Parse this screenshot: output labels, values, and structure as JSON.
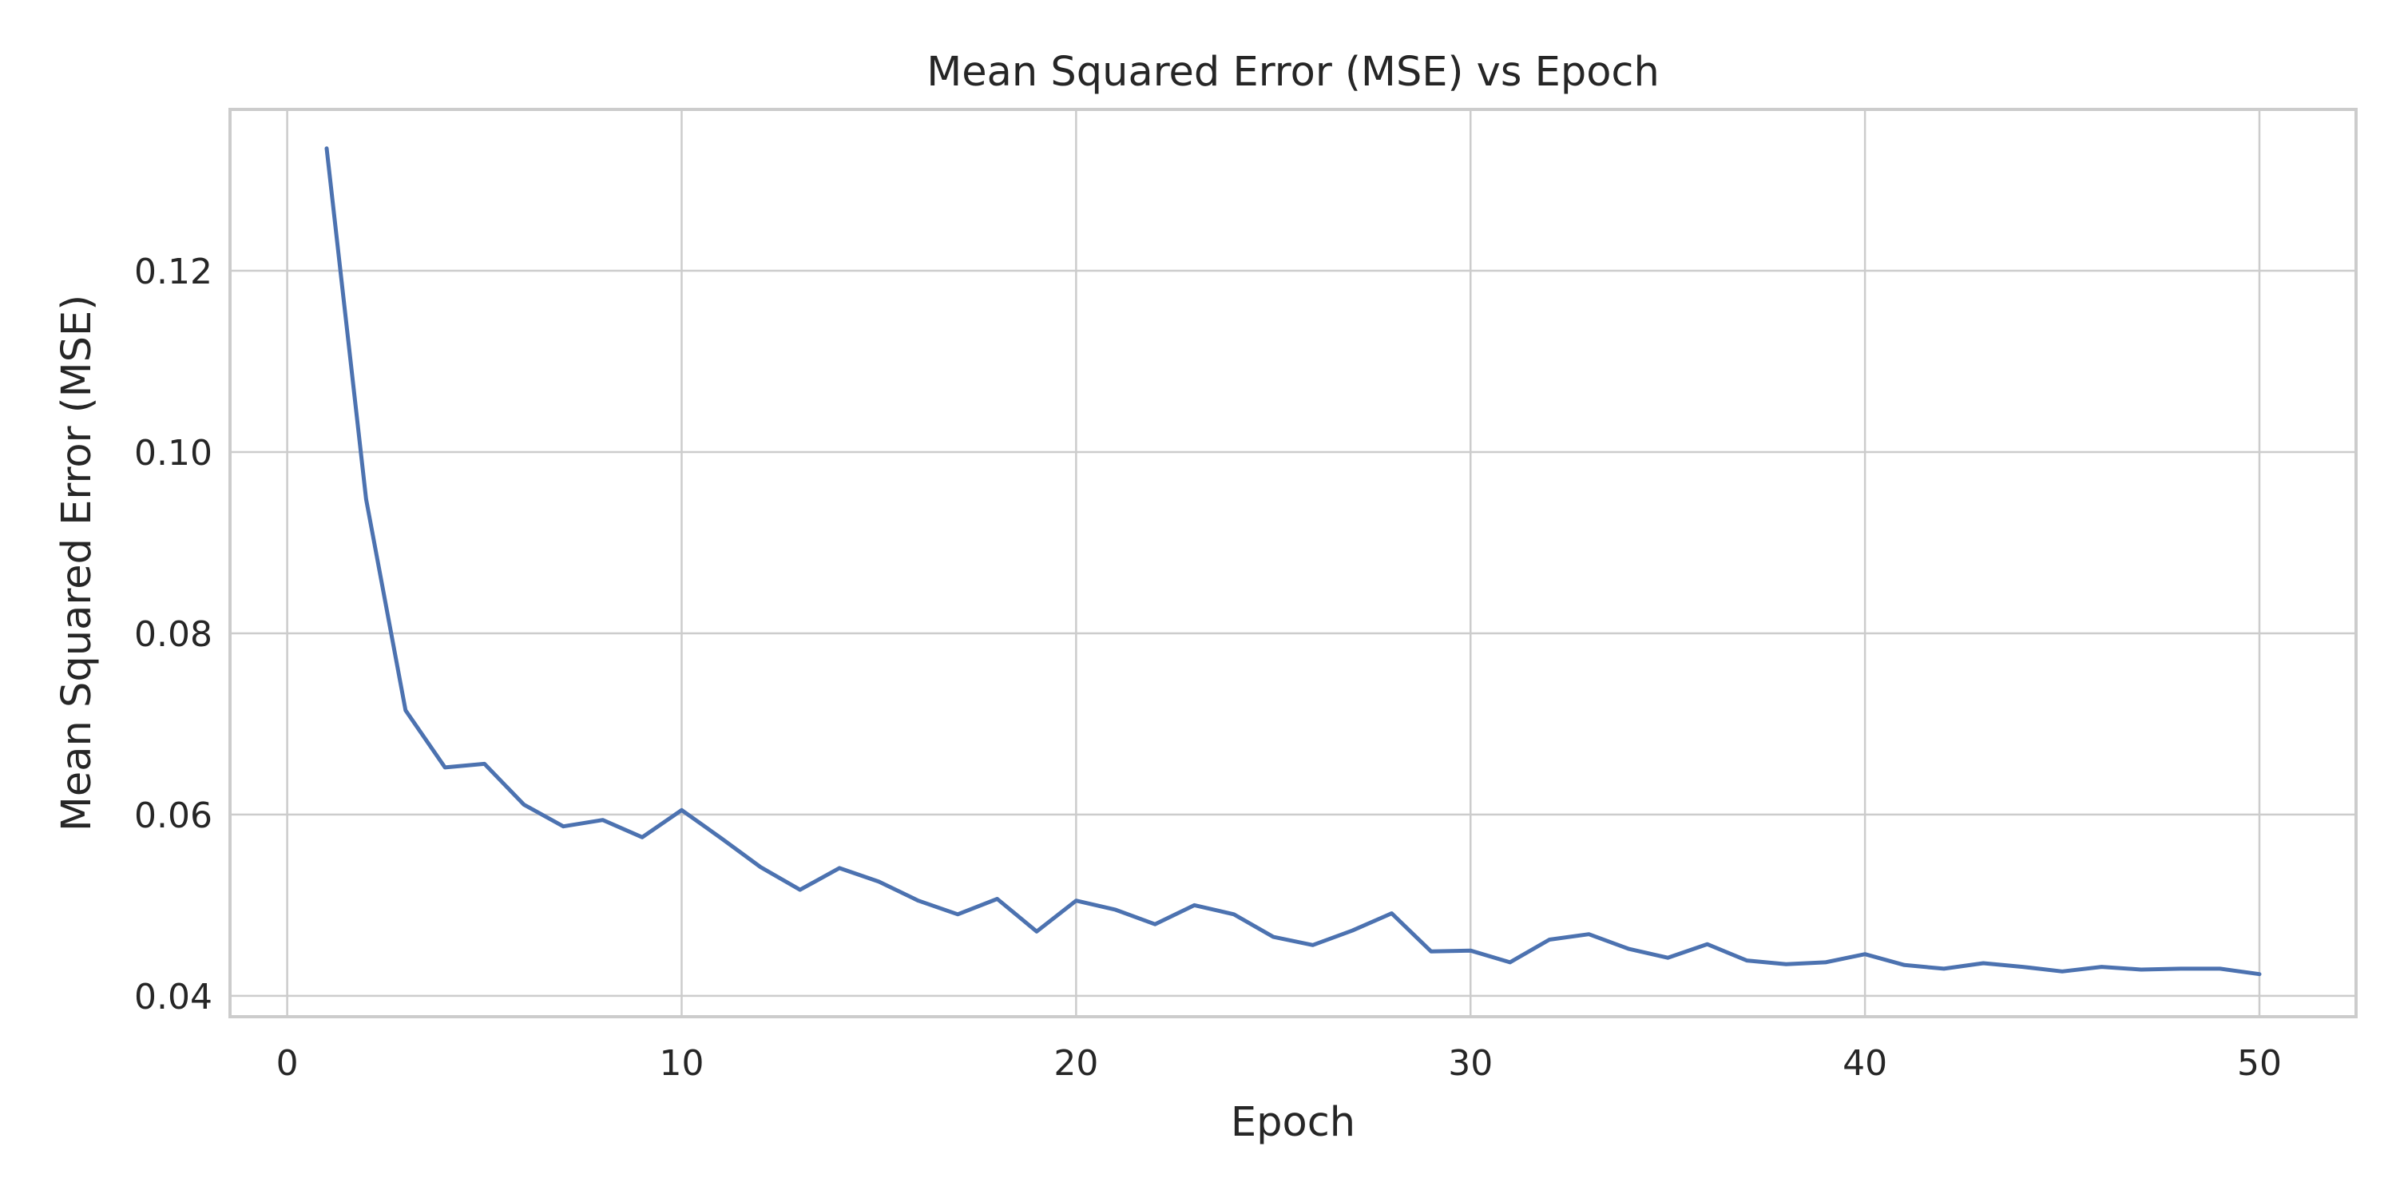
{
  "chart_data": {
    "type": "line",
    "title": "Mean Squared Error (MSE) vs Epoch",
    "xlabel": "Epoch",
    "ylabel": "Mean Squared Error (MSE)",
    "xlim": [
      -1.45,
      52.45
    ],
    "ylim": [
      0.0377,
      0.1378
    ],
    "xticks": [
      0,
      10,
      20,
      30,
      40,
      50
    ],
    "yticks": [
      0.04,
      0.06,
      0.08,
      0.1,
      0.12
    ],
    "ytick_labels": [
      "0.04",
      "0.06",
      "0.08",
      "0.10",
      "0.12"
    ],
    "grid": true,
    "legend": false,
    "series_color": "#4c72b0",
    "series": [
      {
        "x": [
          1,
          2,
          3,
          4,
          5,
          6,
          7,
          8,
          9,
          10,
          11,
          12,
          13,
          14,
          15,
          16,
          17,
          18,
          19,
          20,
          21,
          22,
          23,
          24,
          25,
          26,
          27,
          28,
          29,
          30,
          31,
          32,
          33,
          34,
          35,
          36,
          37,
          38,
          39,
          40,
          41,
          42,
          43,
          44,
          45,
          46,
          47,
          48,
          49,
          50
        ],
        "y": [
          0.1335,
          0.0948,
          0.0715,
          0.0652,
          0.0656,
          0.0611,
          0.0587,
          0.0594,
          0.0575,
          0.0605,
          0.0574,
          0.0542,
          0.0517,
          0.0541,
          0.0526,
          0.0505,
          0.049,
          0.0507,
          0.0471,
          0.0505,
          0.0495,
          0.0479,
          0.05,
          0.049,
          0.0465,
          0.0456,
          0.0472,
          0.0491,
          0.0449,
          0.045,
          0.0437,
          0.0462,
          0.0468,
          0.0452,
          0.0442,
          0.0457,
          0.0439,
          0.0435,
          0.0437,
          0.0446,
          0.0434,
          0.043,
          0.0436,
          0.0432,
          0.0427,
          0.0432,
          0.0429,
          0.043,
          0.043,
          0.0424
        ]
      }
    ]
  }
}
